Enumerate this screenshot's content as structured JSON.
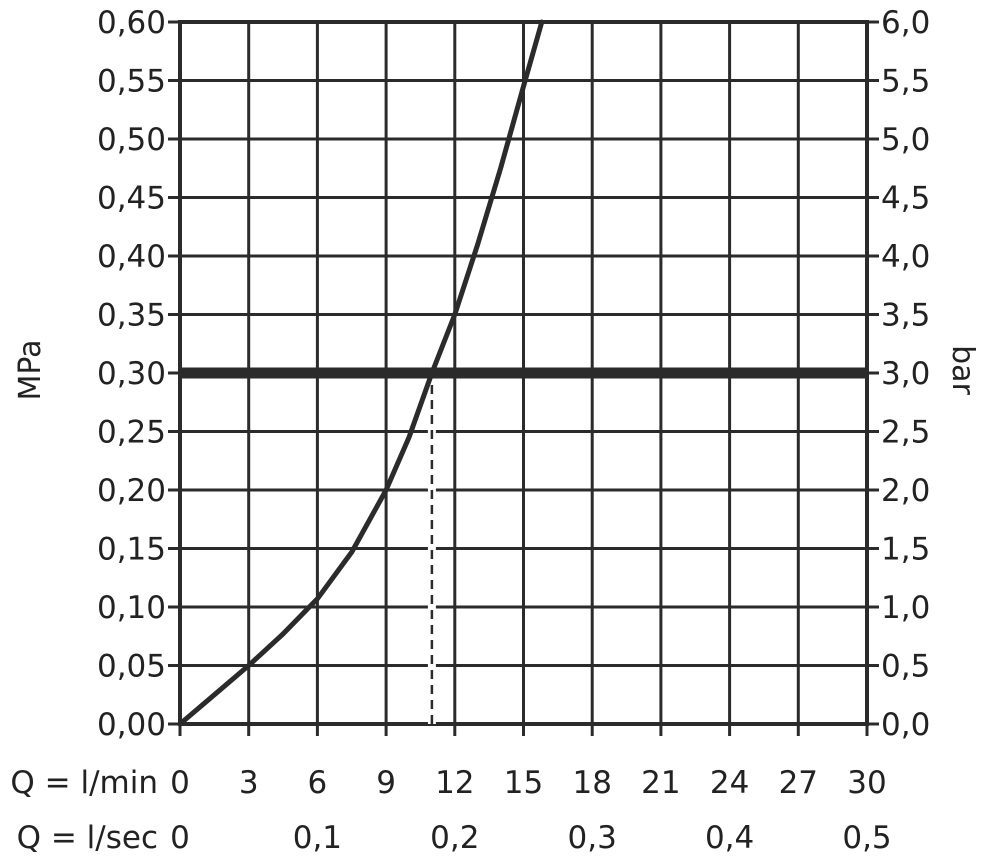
{
  "chart_data": {
    "type": "line",
    "title": "",
    "left_axis": {
      "label": "MPa",
      "range": [
        0.0,
        0.6
      ],
      "ticks": [
        "0,00",
        "0,05",
        "0,10",
        "0,15",
        "0,20",
        "0,25",
        "0,30",
        "0,35",
        "0,40",
        "0,45",
        "0,50",
        "0,55",
        "0,60"
      ]
    },
    "right_axis": {
      "label": "bar",
      "range": [
        0.0,
        6.0
      ],
      "ticks": [
        "0,0",
        "0,5",
        "1,0",
        "1,5",
        "2,0",
        "2,5",
        "3,0",
        "3,5",
        "4,0",
        "4,5",
        "5,0",
        "5,5",
        "6,0"
      ]
    },
    "x_axis_primary": {
      "label": "Q = l/min",
      "range": [
        0,
        30
      ],
      "ticks": [
        {
          "value": 0,
          "label": "0"
        },
        {
          "value": 3,
          "label": "3"
        },
        {
          "value": 6,
          "label": "6"
        },
        {
          "value": 9,
          "label": "9"
        },
        {
          "value": 12,
          "label": "12"
        },
        {
          "value": 15,
          "label": "15"
        },
        {
          "value": 18,
          "label": "18"
        },
        {
          "value": 21,
          "label": "21"
        },
        {
          "value": 24,
          "label": "24"
        },
        {
          "value": 27,
          "label": "27"
        },
        {
          "value": 30,
          "label": "30"
        }
      ]
    },
    "x_axis_secondary": {
      "label": "Q = l/sec",
      "ticks": [
        {
          "value": 0,
          "label": "0"
        },
        {
          "value": 6,
          "label": "0,1"
        },
        {
          "value": 12,
          "label": "0,2"
        },
        {
          "value": 18,
          "label": "0,3"
        },
        {
          "value": 24,
          "label": "0,4"
        },
        {
          "value": 30,
          "label": "0,5"
        }
      ]
    },
    "grid": true,
    "series": [
      {
        "x": [
          0,
          1.5,
          3,
          4.5,
          6,
          7.5,
          9,
          10,
          11,
          12,
          13,
          14,
          15,
          15.8
        ],
        "y": [
          0.0,
          0.025,
          0.05,
          0.077,
          0.107,
          0.147,
          0.2,
          0.245,
          0.3,
          0.35,
          0.41,
          0.475,
          0.545,
          0.6
        ]
      }
    ],
    "reference_line": {
      "y": 0.3
    },
    "marker_line": {
      "x": 11,
      "y_from": 0.0,
      "y_to": 0.3,
      "style": "dashed"
    },
    "colors": {
      "line": "#2b2b2b",
      "grid": "#2b2b2b",
      "text": "#222222",
      "background": "#ffffff"
    }
  }
}
